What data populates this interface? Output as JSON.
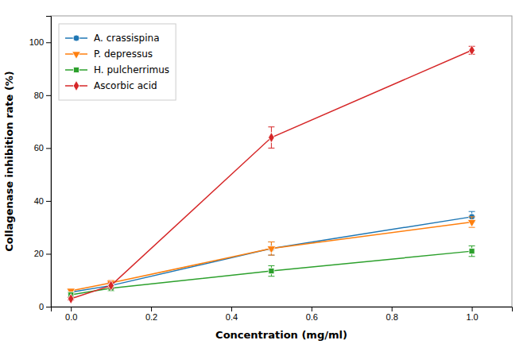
{
  "chart_data": {
    "type": "line",
    "x": [
      0.0,
      0.1,
      0.5,
      1.0
    ],
    "series": [
      {
        "name": "A. crassispina",
        "values": [
          5.5,
          8.0,
          22.0,
          34.0
        ],
        "errors": [
          0.8,
          1.2,
          2.5,
          2.0
        ],
        "marker": "circle",
        "line_style": "solid"
      },
      {
        "name": "P. depressus",
        "values": [
          6.0,
          9.0,
          22.0,
          32.0
        ],
        "errors": [
          0.8,
          1.0,
          2.5,
          2.0
        ],
        "marker": "triangle-down",
        "line_style": "solid"
      },
      {
        "name": "H. pulcherrimus",
        "values": [
          4.5,
          7.0,
          13.5,
          21.0
        ],
        "errors": [
          0.8,
          1.0,
          2.0,
          2.0
        ],
        "marker": "square",
        "line_style": "solid"
      },
      {
        "name": "Ascorbic acid",
        "values": [
          3.0,
          8.0,
          64.0,
          97.0
        ],
        "errors": [
          0.5,
          1.0,
          4.0,
          1.5
        ],
        "marker": "diamond",
        "line_style": "solid"
      }
    ],
    "x_label": "Concentration (mg/ml)",
    "y_label": "Collagenase inhibition rate (%)",
    "xlim": [
      -0.05,
      1.1
    ],
    "ylim": [
      0,
      110
    ],
    "xticks": [
      {
        "value": 0.0,
        "label": "0.0"
      },
      0.2,
      0.4,
      0.6,
      0.8,
      {
        "value": 1.0,
        "label": "1.0"
      }
    ],
    "yticks": [
      0,
      20,
      40,
      60,
      80,
      100
    ],
    "grid": false,
    "legend": "upper left"
  }
}
